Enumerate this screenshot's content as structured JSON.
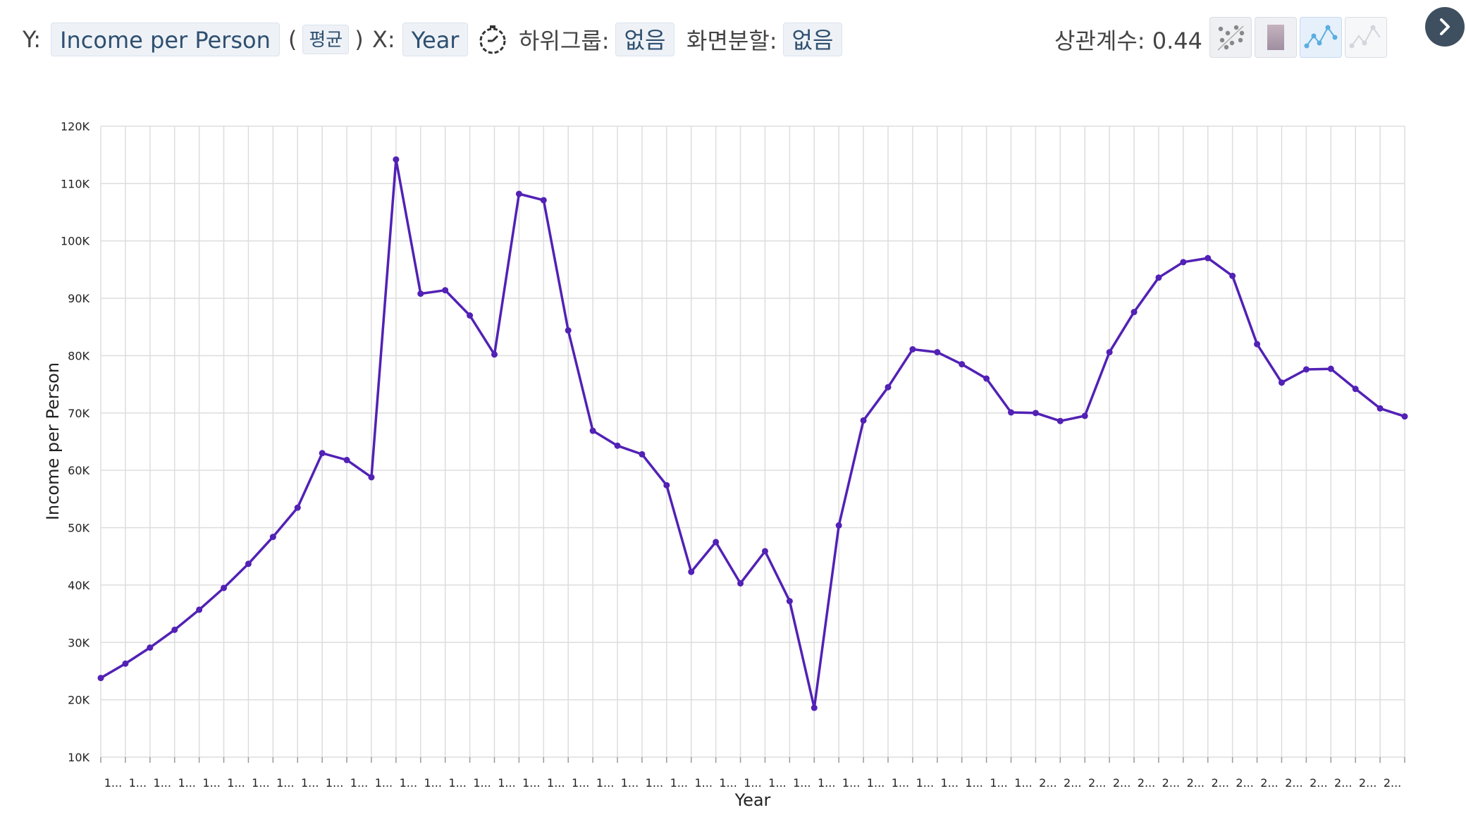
{
  "toolbar": {
    "y_label": "Y:",
    "y_value": "Income per Person",
    "agg_open": "(",
    "agg_value": "평균",
    "agg_close": ")",
    "x_label": "X:",
    "x_value": "Year",
    "subgroup_label": "하위그룹:",
    "subgroup_value": "없음",
    "split_label": "화면분할:",
    "split_value": "없음",
    "correlation_text": "상관계수: 0.44",
    "icons": [
      "scatter-plot-icon",
      "heatmap-icon",
      "line-chart-icon",
      "smooth-line-icon",
      "timer-icon",
      "next-arrow-icon"
    ]
  },
  "chart_data": {
    "type": "line",
    "xlabel": "Year",
    "ylabel": "Income per Person",
    "ylim": [
      10000,
      120000
    ],
    "y_ticks": [
      "10K",
      "20K",
      "30K",
      "40K",
      "50K",
      "60K",
      "70K",
      "80K",
      "90K",
      "100K",
      "110K",
      "120K"
    ],
    "y_tick_values": [
      10000,
      20000,
      30000,
      40000,
      50000,
      60000,
      70000,
      80000,
      90000,
      100000,
      110000,
      120000
    ],
    "x_tick_labels": [
      "1...",
      "1...",
      "1...",
      "1...",
      "1...",
      "1...",
      "1...",
      "1...",
      "1...",
      "1...",
      "1...",
      "1...",
      "1...",
      "1...",
      "1...",
      "1...",
      "1...",
      "1...",
      "1...",
      "1...",
      "1...",
      "1...",
      "1...",
      "1...",
      "1...",
      "1...",
      "1...",
      "1...",
      "1...",
      "1...",
      "1...",
      "1...",
      "1...",
      "1...",
      "1...",
      "1...",
      "1...",
      "1...",
      "2...",
      "2...",
      "2...",
      "2...",
      "2...",
      "2...",
      "2...",
      "2...",
      "2...",
      "2...",
      "2...",
      "2...",
      "2...",
      "2...",
      "2..."
    ],
    "grid": true,
    "line_color": "#5221b5",
    "values": [
      23800,
      26300,
      29100,
      32200,
      35700,
      39500,
      43700,
      48400,
      53500,
      63000,
      61800,
      58800,
      114200,
      90800,
      91400,
      87000,
      80200,
      108200,
      107100,
      84400,
      66900,
      64300,
      62800,
      57400,
      42300,
      47500,
      40300,
      45900,
      37200,
      18600,
      50400,
      68700,
      74500,
      81100,
      80600,
      78500,
      76000,
      70100,
      70000,
      68600,
      69500,
      80600,
      87600,
      93600,
      96300,
      97000,
      93900,
      82000,
      75300,
      77600,
      77700,
      74200,
      70800,
      69400
    ]
  }
}
